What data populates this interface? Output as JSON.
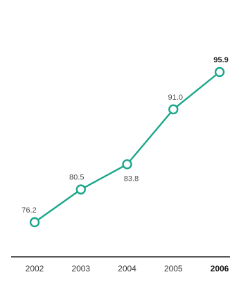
{
  "chart_data": {
    "type": "line",
    "title": "",
    "xlabel": "",
    "ylabel": "",
    "categories": [
      "2002",
      "2003",
      "2004",
      "2005",
      "2006"
    ],
    "series": [
      {
        "values": [
          76.2,
          80.5,
          83.8,
          91.0,
          95.9
        ],
        "labels": [
          "76.2",
          "80.5",
          "83.8",
          "91.0",
          "95.9"
        ]
      }
    ],
    "highlight_index": 4,
    "ylim": [
      70,
      100
    ],
    "grid": false,
    "legend": "none",
    "colors": {
      "line": "#1aa68a",
      "marker_fill": "#ffffff",
      "axis": "#222222",
      "text": "#444444"
    }
  }
}
